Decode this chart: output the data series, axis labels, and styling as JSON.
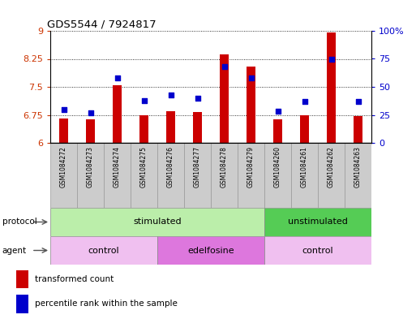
{
  "title": "GDS5544 / 7924817",
  "samples": [
    "GSM1084272",
    "GSM1084273",
    "GSM1084274",
    "GSM1084275",
    "GSM1084276",
    "GSM1084277",
    "GSM1084278",
    "GSM1084279",
    "GSM1084260",
    "GSM1084261",
    "GSM1084262",
    "GSM1084263"
  ],
  "bar_values": [
    6.65,
    6.62,
    7.55,
    6.75,
    6.85,
    6.82,
    8.37,
    8.05,
    6.64,
    6.75,
    8.95,
    6.72
  ],
  "percentile_values": [
    30,
    27,
    58,
    38,
    43,
    40,
    68,
    58,
    28,
    37,
    75,
    37
  ],
  "bar_color": "#cc0000",
  "dot_color": "#0000cc",
  "ymin": 6.0,
  "ymax": 9.0,
  "yticks": [
    6.0,
    6.75,
    7.5,
    8.25,
    9.0
  ],
  "ytick_labels": [
    "6",
    "6.75",
    "7.5",
    "8.25",
    "9"
  ],
  "right_yticks": [
    0,
    25,
    50,
    75,
    100
  ],
  "right_ytick_labels": [
    "0",
    "25",
    "50",
    "75",
    "100%"
  ],
  "protocol_groups": [
    {
      "label": "stimulated",
      "start": 0,
      "end": 7,
      "color": "#bbeeaa"
    },
    {
      "label": "unstimulated",
      "start": 8,
      "end": 11,
      "color": "#55cc55"
    }
  ],
  "agent_groups": [
    {
      "label": "control",
      "start": 0,
      "end": 3,
      "color": "#f0c0f0"
    },
    {
      "label": "edelfosine",
      "start": 4,
      "end": 7,
      "color": "#dd77dd"
    },
    {
      "label": "control",
      "start": 8,
      "end": 11,
      "color": "#f0c0f0"
    }
  ],
  "protocol_label": "protocol",
  "agent_label": "agent",
  "legend_bar_label": "transformed count",
  "legend_dot_label": "percentile rank within the sample",
  "bar_baseline": 6.0,
  "sample_box_color": "#cccccc",
  "sample_box_edge": "#999999",
  "left_axis_color": "#cc3300",
  "right_axis_color": "#0000cc"
}
